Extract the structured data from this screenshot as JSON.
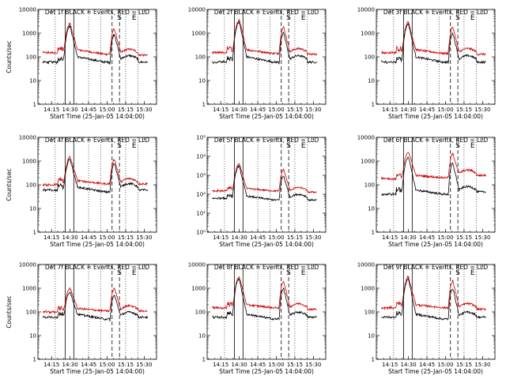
{
  "figure": {
    "background": "#ffffff",
    "event_color": "#000000",
    "lld_color": "#cc0000",
    "xlabel": "Start Time (25-Jan-05 14:04:00)",
    "ylabel": "Counts/sec",
    "x_ticks": [
      "14:15",
      "14:30",
      "14:45",
      "15:00",
      "15:15",
      "15:30"
    ],
    "x_tick_minutes": [
      15,
      30,
      45,
      60,
      75,
      90
    ],
    "xlim_minutes": [
      4,
      100
    ],
    "ylim": [
      1,
      10000
    ],
    "y_ticks_plain": [
      "1",
      "10",
      "100",
      "1000",
      "10000"
    ],
    "y_ticks_exp": [
      "10⁰",
      "10¹",
      "10²",
      "10³",
      "10⁴",
      "10⁵"
    ],
    "solid_lines_minutes": [
      26,
      33
    ],
    "dashed_lines_minutes": [
      64,
      70
    ],
    "dotted_lines_minutes": [
      18,
      45,
      55,
      75,
      85
    ],
    "region_labels": [
      {
        "text": "S",
        "minute": 70
      },
      {
        "text": "E",
        "minute": 82
      }
    ]
  },
  "chart_data": [
    {
      "type": "line",
      "title": "Det 1f BLACK = Events, RED = LLD",
      "yscale": "log",
      "ylim": [
        1,
        10000
      ],
      "series": [
        {
          "name": "Events",
          "values": [
            60,
            70,
            2000,
            100,
            60,
            40,
            900,
            80,
            60
          ]
        },
        {
          "name": "LLD",
          "values": [
            150,
            180,
            2500,
            200,
            130,
            150,
            1500,
            150,
            120
          ]
        }
      ]
    },
    {
      "type": "line",
      "title": "Det 2f BLACK = Events, RED = LLD",
      "yscale": "log",
      "ylim": [
        1,
        10000
      ],
      "series": [
        {
          "name": "Events",
          "values": [
            60,
            70,
            3000,
            100,
            60,
            40,
            1000,
            80,
            60
          ]
        },
        {
          "name": "LLD",
          "values": [
            150,
            180,
            3500,
            200,
            140,
            150,
            1800,
            160,
            130
          ]
        }
      ]
    },
    {
      "type": "line",
      "title": "Det 3f BLACK = Events, RED = LLD",
      "yscale": "log",
      "ylim": [
        1,
        10000
      ],
      "series": [
        {
          "name": "Events",
          "values": [
            60,
            70,
            2500,
            100,
            60,
            40,
            1000,
            80,
            60
          ]
        },
        {
          "name": "LLD",
          "values": [
            150,
            180,
            3000,
            200,
            140,
            150,
            1800,
            160,
            130
          ]
        }
      ]
    },
    {
      "type": "line",
      "title": "Det 4f BLACK = Events, RED = LLD",
      "yscale": "log",
      "ylim": [
        1,
        10000
      ],
      "series": [
        {
          "name": "Events",
          "values": [
            60,
            70,
            1200,
            80,
            50,
            40,
            800,
            80,
            60
          ]
        },
        {
          "name": "LLD",
          "values": [
            100,
            130,
            1500,
            150,
            110,
            130,
            1200,
            130,
            110
          ]
        }
      ]
    },
    {
      "type": "line",
      "title": "Det 5f BLACK = Events, RED = LLD",
      "yscale": "log",
      "ylim": [
        1,
        100000
      ],
      "series": [
        {
          "name": "Events",
          "values": [
            60,
            70,
            3000,
            80,
            50,
            40,
            900,
            70,
            50
          ]
        },
        {
          "name": "LLD",
          "values": [
            150,
            180,
            4000,
            200,
            150,
            150,
            2000,
            160,
            130
          ]
        }
      ]
    },
    {
      "type": "line",
      "title": "Det 6f BLACK = Events, RED = LLD",
      "yscale": "log",
      "ylim": [
        1,
        10000
      ],
      "series": [
        {
          "name": "Events",
          "values": [
            40,
            50,
            1500,
            60,
            40,
            30,
            800,
            60,
            50
          ]
        },
        {
          "name": "LLD",
          "values": [
            180,
            200,
            2500,
            250,
            200,
            200,
            2000,
            300,
            250
          ]
        }
      ]
    },
    {
      "type": "line",
      "title": "Det 7f BLACK = Events, RED = LLD",
      "yscale": "log",
      "ylim": [
        1,
        10000
      ],
      "series": [
        {
          "name": "Events",
          "values": [
            60,
            70,
            700,
            80,
            50,
            40,
            500,
            70,
            60
          ]
        },
        {
          "name": "LLD",
          "values": [
            100,
            120,
            1000,
            140,
            110,
            120,
            1000,
            130,
            110
          ]
        }
      ]
    },
    {
      "type": "line",
      "title": "Det 8f BLACK = Events, RED = LLD",
      "yscale": "log",
      "ylim": [
        1,
        10000
      ],
      "series": [
        {
          "name": "Events",
          "values": [
            60,
            70,
            2500,
            80,
            50,
            40,
            1000,
            70,
            60
          ]
        },
        {
          "name": "LLD",
          "values": [
            150,
            180,
            3000,
            200,
            150,
            150,
            2000,
            160,
            130
          ]
        }
      ]
    },
    {
      "type": "line",
      "title": "Det 9f BLACK = Events, RED = LLD",
      "yscale": "log",
      "ylim": [
        1,
        10000
      ],
      "series": [
        {
          "name": "Events",
          "values": [
            60,
            70,
            2500,
            80,
            50,
            40,
            1000,
            70,
            60
          ]
        },
        {
          "name": "LLD",
          "values": [
            150,
            180,
            3000,
            200,
            150,
            150,
            2000,
            160,
            130
          ]
        }
      ]
    }
  ]
}
